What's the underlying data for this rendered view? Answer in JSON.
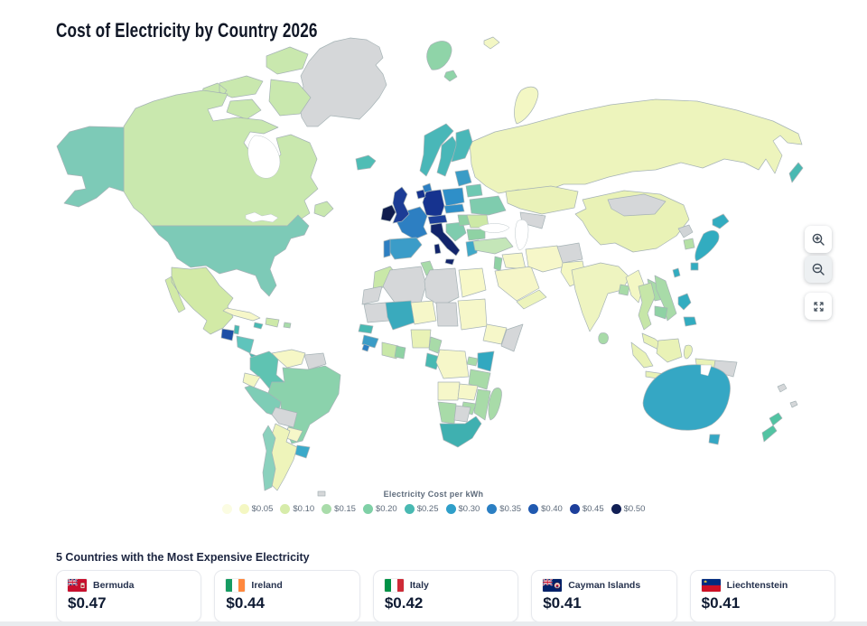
{
  "page": {
    "title": "Cost of Electricity by Country 2026"
  },
  "legend": {
    "title": "Electricity Cost per kWh",
    "items": [
      {
        "label": "",
        "color": "#fbfce2"
      },
      {
        "label": "$0.05",
        "color": "#f4f7c2"
      },
      {
        "label": "$0.10",
        "color": "#d7ecaa"
      },
      {
        "label": "$0.15",
        "color": "#a9dcaa"
      },
      {
        "label": "$0.20",
        "color": "#7fd0a6"
      },
      {
        "label": "$0.25",
        "color": "#49b9b2"
      },
      {
        "label": "$0.30",
        "color": "#2f9fc9"
      },
      {
        "label": "$0.35",
        "color": "#2b7fc3"
      },
      {
        "label": "$0.40",
        "color": "#2059b0"
      },
      {
        "label": "$0.45",
        "color": "#1d3f9b"
      },
      {
        "label": "$0.50",
        "color": "#111f55"
      }
    ]
  },
  "controls": {
    "buttons": [
      {
        "id": "zoom-in",
        "icon": "magnifier-plus-icon"
      },
      {
        "id": "zoom-out",
        "icon": "magnifier-minus-icon"
      },
      {
        "id": "fullscreen",
        "icon": "expand-icon"
      }
    ]
  },
  "expensive": {
    "heading": "5 Countries with the Most Expensive Electricity",
    "cards": [
      {
        "country": "Bermuda",
        "value": "$0.47",
        "flag": "bermuda-flag"
      },
      {
        "country": "Ireland",
        "value": "$0.44",
        "flag": "ireland-flag"
      },
      {
        "country": "Italy",
        "value": "$0.42",
        "flag": "italy-flag"
      },
      {
        "country": "Cayman Islands",
        "value": "$0.41",
        "flag": "cayman-islands-flag"
      },
      {
        "country": "Liechtenstein",
        "value": "$0.41",
        "flag": "liechtenstein-flag"
      }
    ]
  },
  "map": {
    "type": "choropleth-world-map",
    "no_data_color": "#d5d7d9",
    "border_color": "#a6b3b6",
    "region_colors": {
      "greenland": "#d5d7d9",
      "svalbard": "#8fd4a8",
      "franz-josef": "#f3f7c4",
      "novaya-zemlya": "#f3f7c4",
      "russia": "#edf4bc",
      "sakhalin": "#49b9b2",
      "kazakhstan": "#eaf2b8",
      "central-asia": "#d5d7d9",
      "china": "#e9f2b6",
      "mongolia": "#d5d7d9",
      "canada": "#c9e8ae",
      "alaska": "#7dcab7",
      "usa": "#7dcab7",
      "mexico": "#d2eaa6",
      "guatemala": "#1d4fa6",
      "belize": "#49b9b2",
      "honduras-nicaragua": "#5fc4bc",
      "costarica-panama": "#49b9b2",
      "cuba": "#f6f7c9",
      "jamaica": "#49b9b2",
      "hispaniola": "#cde9a8",
      "puerto-rico": "#a9dcaa",
      "colombia": "#5fc3b2",
      "venezuela": "#f6f7c6",
      "guyanas": "#d5d7d9",
      "ecuador": "#f3f6c2",
      "peru": "#7ecdb6",
      "brazil": "#8bd2ac",
      "bolivia": "#d5d7d9",
      "paraguay": "#f6f7c9",
      "uruguay": "#3ba9c9",
      "argentina": "#eef4ba",
      "chile": "#8ad1bd",
      "falklands": "#d5d7d9",
      "iceland": "#4fbdb5",
      "ireland": "#101d4e",
      "uk": "#1c3c95",
      "norway": "#49b7b8",
      "sweden": "#49b7b8",
      "finland": "#49b7b8",
      "denmark": "#2d7fc2",
      "baltics": "#3a9cc6",
      "belarus": "#6fc8b2",
      "poland": "#2f8fc8",
      "germany": "#16338f",
      "benelux": "#16338f",
      "france": "#2d7fc2",
      "spain": "#3b9cc8",
      "portugal": "#2d7fc2",
      "alpine": "#1d3f9b",
      "czech": "#2f8fc8",
      "italy": "#12246b",
      "balkans": "#7fccae",
      "hungary": "#8fd2a4",
      "romania": "#cde9a6",
      "serbia-bulgaria": "#8fd2a4",
      "greece": "#3fa8c8",
      "ukraine": "#7fccae",
      "turkey": "#c4e6b8",
      "levant": "#8fd2a4",
      "iraq-syria": "#f6f7c9",
      "saudi": "#f6f6c8",
      "yemen-oman": "#edf4bc",
      "iran": "#f6f7c9",
      "afghanistan": "#d5d7d9",
      "pakistan": "#f4f7c2",
      "india": "#eef4c0",
      "bangladesh": "#a8dba8",
      "sri-lanka": "#a8dba8",
      "north-korea": "#d0d4d6",
      "south-korea": "#b5e0a6",
      "japan": "#32acc0",
      "taiwan": "#32acc0",
      "myanmar": "#f3f7c4",
      "thailand": "#c6e6a8",
      "laos": "#a8dba8",
      "vietnam": "#a8dba8",
      "cambodia": "#8fd2a4",
      "malaysia": "#e9f2b6",
      "indonesia": "#e9f2b6",
      "png": "#d5d7d9",
      "philippines": "#32acc0",
      "australia": "#35a7c4",
      "tasmania": "#35a7c4",
      "new-zealand": "#52c3a2",
      "pacific-islands": "#d5d7d9",
      "morocco": "#c9e8a8",
      "western-sahara": "#d5d7d9",
      "algeria": "#d5d7d9",
      "tunisia": "#a8dba8",
      "libya": "#d5d7d9",
      "egypt": "#f7f8c8",
      "mauritania": "#d5d7d9",
      "mali": "#3aaabd",
      "niger": "#f6f7c9",
      "chad": "#d5d7d9",
      "sudan": "#f6f7c9",
      "ethiopia": "#f6f7c9",
      "somalia": "#d5d7d9",
      "senegal": "#49b9b2",
      "guinea": "#3a9cc6",
      "sierra-leone": "#2b7fc3",
      "ivory-coast": "#c9e8a8",
      "ghana": "#8fd2a4",
      "nigeria": "#e9f2b6",
      "cameroon": "#a8dba8",
      "gabon-congo": "#49b9b2",
      "drc": "#f6f7c9",
      "uganda": "#a8dba8",
      "kenya": "#32a8c0",
      "tanzania": "#a8dba8",
      "angola": "#f6f7c9",
      "zambia": "#f6f7c9",
      "mozambique": "#a8dba8",
      "zimbabwe": "#a8dba8",
      "namibia": "#a8dba8",
      "botswana": "#d5d7d9",
      "south-africa": "#3fb0b0",
      "madagascar": "#a8dba8"
    }
  }
}
